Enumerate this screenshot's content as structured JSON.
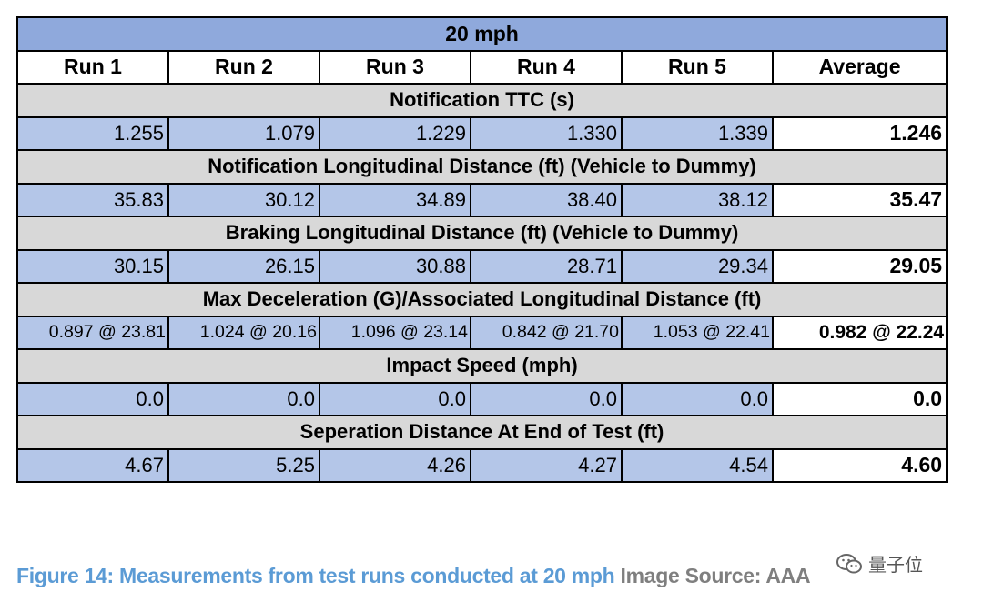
{
  "table": {
    "title": "20 mph",
    "columns": [
      "Run 1",
      "Run 2",
      "Run 3",
      "Run 4",
      "Run 5",
      "Average"
    ],
    "sections": [
      {
        "label": "Notification TTC (s)",
        "values": [
          "1.255",
          "1.079",
          "1.229",
          "1.330",
          "1.339"
        ],
        "average": "1.246"
      },
      {
        "label": "Notification Longitudinal Distance (ft) (Vehicle to Dummy)",
        "values": [
          "35.83",
          "30.12",
          "34.89",
          "38.40",
          "38.12"
        ],
        "average": "35.47"
      },
      {
        "label": "Braking Longitudinal Distance (ft) (Vehicle to Dummy)",
        "values": [
          "30.15",
          "26.15",
          "30.88",
          "28.71",
          "29.34"
        ],
        "average": "29.05"
      },
      {
        "label": "Max Deceleration (G)/Associated Longitudinal Distance (ft)",
        "values": [
          "0.897 @ 23.81",
          "1.024 @ 20.16",
          "1.096 @ 23.14",
          "0.842 @ 21.70",
          "1.053 @ 22.41"
        ],
        "average": "0.982 @ 22.24"
      },
      {
        "label": "Impact Speed (mph)",
        "values": [
          "0.0",
          "0.0",
          "0.0",
          "0.0",
          "0.0"
        ],
        "average": "0.0"
      },
      {
        "label": "Seperation Distance At End of Test (ft)",
        "values": [
          "4.67",
          "5.25",
          "4.26",
          "4.27",
          "4.54"
        ],
        "average": "4.60"
      }
    ]
  },
  "caption": {
    "figure": "Figure 14: Measurements from test runs conducted at 20 mph",
    "source": "Image Source: AAA"
  },
  "watermark": {
    "text": "量子位",
    "icon": "wechat-icon"
  }
}
